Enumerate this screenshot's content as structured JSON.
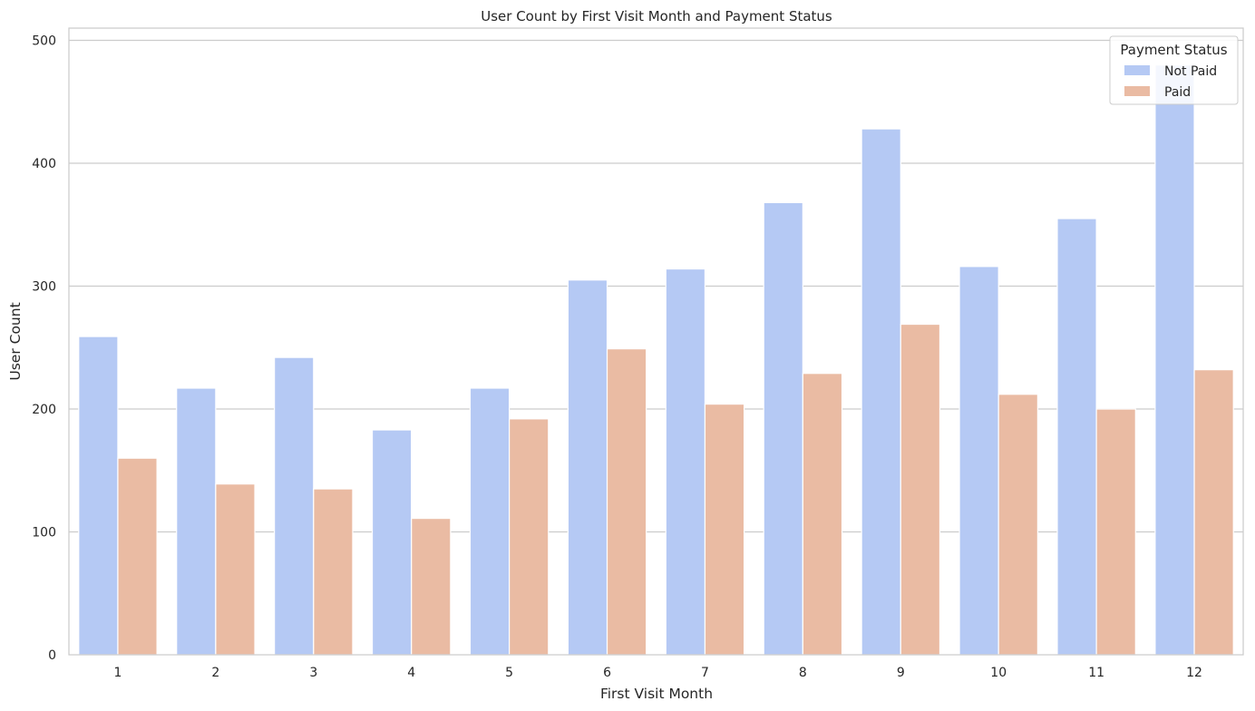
{
  "chart_data": {
    "type": "bar",
    "title": "User Count by First Visit Month and Payment Status",
    "xlabel": "First Visit Month",
    "ylabel": "User Count",
    "categories": [
      "1",
      "2",
      "3",
      "4",
      "5",
      "6",
      "7",
      "8",
      "9",
      "10",
      "11",
      "12"
    ],
    "series": [
      {
        "name": "Not Paid",
        "color": "#b5c9f4",
        "values": [
          259,
          217,
          242,
          183,
          217,
          305,
          314,
          368,
          428,
          316,
          355,
          480
        ]
      },
      {
        "name": "Paid",
        "color": "#eabba3",
        "values": [
          160,
          139,
          135,
          111,
          192,
          249,
          204,
          229,
          269,
          212,
          200,
          232
        ]
      }
    ],
    "ylim": [
      0,
      510
    ],
    "yticks": [
      0,
      100,
      200,
      300,
      400,
      500
    ],
    "grid": true,
    "legend": {
      "title": "Payment Status",
      "position": "top-right"
    }
  }
}
